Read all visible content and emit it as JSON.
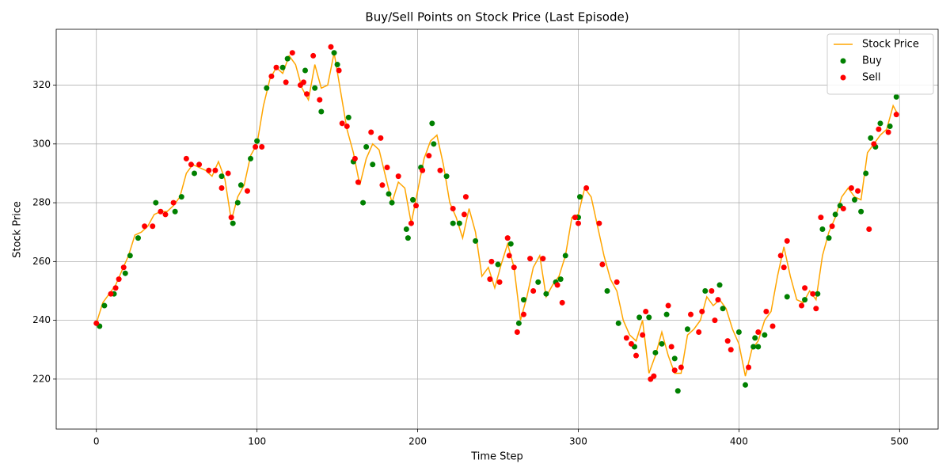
{
  "chart_data": {
    "type": "line",
    "title": "Buy/Sell Points on Stock Price (Last Episode)",
    "x_label": "Time Step",
    "y_label": "Stock Price",
    "xlim": [
      -25,
      524
    ],
    "ylim": [
      203,
      339
    ],
    "xticks": [
      0,
      100,
      200,
      300,
      400,
      500
    ],
    "yticks": [
      220,
      240,
      260,
      280,
      300,
      320
    ],
    "grid": true,
    "legend": "upper right",
    "series": [
      {
        "name": "Stock Price",
        "type": "line",
        "color": "#ffa500",
        "x": [
          0,
          4,
          8,
          12,
          16,
          20,
          24,
          28,
          32,
          36,
          40,
          44,
          48,
          52,
          56,
          60,
          64,
          68,
          72,
          76,
          80,
          84,
          88,
          92,
          96,
          100,
          104,
          108,
          112,
          116,
          120,
          124,
          128,
          132,
          136,
          140,
          144,
          148,
          152,
          156,
          160,
          164,
          168,
          172,
          176,
          180,
          184,
          188,
          192,
          196,
          200,
          204,
          208,
          212,
          216,
          220,
          224,
          228,
          232,
          236,
          240,
          244,
          248,
          252,
          256,
          260,
          264,
          268,
          272,
          276,
          280,
          284,
          288,
          292,
          296,
          300,
          304,
          308,
          312,
          316,
          320,
          324,
          328,
          332,
          336,
          340,
          344,
          348,
          352,
          356,
          360,
          364,
          368,
          372,
          376,
          380,
          384,
          388,
          392,
          396,
          400,
          404,
          408,
          412,
          416,
          420,
          424,
          428,
          432,
          436,
          440,
          444,
          448,
          452,
          456,
          460,
          464,
          468,
          472,
          476,
          480,
          484,
          488,
          492,
          496,
          499
        ],
        "values": [
          239,
          246,
          249,
          252,
          257,
          262,
          269,
          270,
          272,
          276,
          277,
          277,
          279,
          282,
          290,
          293,
          292,
          291,
          289,
          294,
          288,
          274,
          282,
          286,
          296,
          300,
          313,
          322,
          326,
          324,
          330,
          327,
          319,
          315,
          327,
          319,
          320,
          331,
          318,
          305,
          297,
          286,
          295,
          300,
          298,
          289,
          280,
          287,
          285,
          273,
          284,
          295,
          301,
          303,
          293,
          280,
          275,
          268,
          278,
          270,
          255,
          258,
          251,
          259,
          266,
          258,
          240,
          248,
          258,
          262,
          248,
          252,
          255,
          262,
          275,
          276,
          285,
          282,
          272,
          262,
          254,
          250,
          240,
          235,
          233,
          240,
          222,
          228,
          236,
          228,
          222,
          222,
          235,
          237,
          240,
          248,
          245,
          247,
          244,
          237,
          232,
          221,
          230,
          233,
          240,
          243,
          255,
          265,
          255,
          247,
          246,
          250,
          247,
          262,
          270,
          275,
          282,
          285,
          282,
          281,
          297,
          300,
          303,
          305,
          313,
          310
        ]
      },
      {
        "name": "Buy",
        "type": "scatter",
        "color": "#008000",
        "x": [
          2,
          5,
          11,
          18,
          21,
          26,
          37,
          49,
          53,
          61,
          78,
          85,
          88,
          90,
          96,
          100,
          106,
          116,
          119,
          130,
          136,
          140,
          148,
          150,
          157,
          160,
          166,
          168,
          172,
          182,
          184,
          193,
          194,
          197,
          202,
          209,
          210,
          218,
          222,
          226,
          236,
          250,
          258,
          263,
          266,
          275,
          280,
          286,
          289,
          292,
          300,
          301,
          318,
          325,
          335,
          338,
          344,
          348,
          352,
          355,
          360,
          362,
          368,
          379,
          388,
          390,
          400,
          404,
          409,
          410,
          412,
          416,
          430,
          441,
          449,
          452,
          456,
          460,
          463,
          472,
          476,
          479,
          482,
          485,
          488,
          494,
          498
        ],
        "values": [
          238,
          245,
          249,
          256,
          262,
          268,
          280,
          277,
          282,
          290,
          289,
          273,
          280,
          286,
          295,
          301,
          319,
          326,
          329,
          325,
          319,
          311,
          331,
          327,
          309,
          294,
          280,
          299,
          293,
          283,
          280,
          271,
          268,
          281,
          292,
          307,
          300,
          289,
          273,
          273,
          267,
          259,
          266,
          239,
          247,
          253,
          249,
          253,
          254,
          262,
          275,
          282,
          250,
          239,
          231,
          241,
          241,
          229,
          232,
          242,
          227,
          216,
          237,
          250,
          252,
          244,
          236,
          218,
          231,
          234,
          231,
          235,
          248,
          247,
          249,
          271,
          268,
          276,
          279,
          281,
          277,
          290,
          302,
          299,
          307,
          306,
          316
        ]
      },
      {
        "name": "Sell",
        "type": "scatter",
        "color": "#ff0000",
        "x": [
          0,
          9,
          12,
          14,
          17,
          30,
          35,
          40,
          43,
          48,
          56,
          59,
          64,
          70,
          74,
          78,
          82,
          84,
          94,
          99,
          103,
          109,
          112,
          118,
          122,
          127,
          129,
          131,
          135,
          139,
          146,
          151,
          153,
          156,
          161,
          163,
          171,
          177,
          178,
          181,
          188,
          196,
          199,
          203,
          207,
          214,
          222,
          229,
          230,
          245,
          246,
          251,
          256,
          257,
          260,
          262,
          266,
          270,
          272,
          278,
          287,
          290,
          298,
          300,
          305,
          313,
          315,
          324,
          330,
          333,
          336,
          340,
          342,
          345,
          347,
          356,
          358,
          360,
          364,
          370,
          375,
          377,
          383,
          385,
          387,
          393,
          395,
          406,
          412,
          417,
          421,
          426,
          428,
          430,
          439,
          441,
          446,
          448,
          451,
          458,
          465,
          470,
          474,
          481,
          484,
          487,
          493,
          498
        ],
        "values": [
          239,
          249,
          251,
          254,
          258,
          272,
          272,
          277,
          276,
          280,
          295,
          293,
          293,
          291,
          291,
          285,
          290,
          275,
          284,
          299,
          299,
          323,
          326,
          321,
          331,
          320,
          321,
          317,
          330,
          315,
          333,
          325,
          307,
          306,
          295,
          287,
          304,
          302,
          286,
          292,
          289,
          273,
          279,
          291,
          296,
          291,
          278,
          276,
          282,
          254,
          260,
          253,
          268,
          262,
          258,
          236,
          242,
          261,
          250,
          261,
          252,
          246,
          275,
          273,
          285,
          273,
          259,
          253,
          234,
          232,
          228,
          235,
          243,
          220,
          221,
          245,
          231,
          223,
          224,
          242,
          236,
          243,
          250,
          240,
          247,
          233,
          230,
          224,
          236,
          243,
          238,
          262,
          258,
          267,
          245,
          251,
          249,
          244,
          275,
          272,
          278,
          285,
          284,
          271,
          300,
          305,
          304,
          310
        ]
      }
    ]
  }
}
